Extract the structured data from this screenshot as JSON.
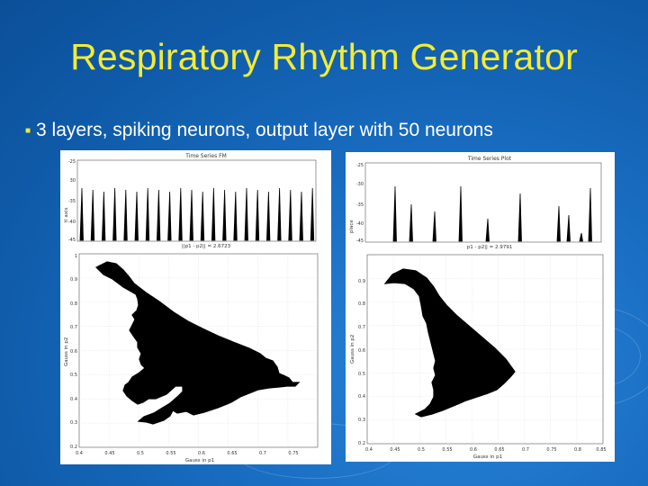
{
  "slide": {
    "title": "Respiratory Rhythm Generator",
    "bullet": "3 layers, spiking neurons, output layer with 50 neurons",
    "colors": {
      "background": "#1667b8",
      "title": "#f2ec35",
      "text": "#ffffff"
    }
  },
  "figures": {
    "left": {
      "top_title": "Time Series FM",
      "top_ylabel": "tl axis",
      "top_yticks": [
        "-25",
        "30",
        "-35",
        "-40",
        "-45"
      ],
      "norm_label": "||p1 - p2|| = 2.6723",
      "bottom_ylabel": "Gauss in p2",
      "bottom_xlabel": "Gauss in p1",
      "bottom_yticks": [
        "1",
        "0.9",
        "0.8",
        "0.7",
        "0.6",
        "0.5",
        "0.4",
        "0.3",
        "0.2"
      ],
      "bottom_xticks": [
        "0.4",
        "0.45",
        "0.5",
        "0.55",
        "0.6",
        "0.65",
        "0.7",
        "0.75"
      ]
    },
    "right": {
      "top_title": "Time Series Plot",
      "top_ylabel": "place",
      "top_yticks": [
        "-25",
        "-30",
        "-35",
        "-40",
        "-45"
      ],
      "norm_label": "p1 - p2|| = 2.9791",
      "bottom_ylabel": "Gauss in p2",
      "bottom_xlabel": "Gauss in p1",
      "bottom_yticks": [
        "0.9",
        "0.8",
        "0.7",
        "0.6",
        "0.5",
        "0.4",
        "0.3",
        "0.2"
      ],
      "bottom_xticks": [
        "0.4",
        "0.45",
        "0.5",
        "0.55",
        "0.6",
        "0.65",
        "0.7",
        "0.75",
        "0.8",
        "0.85"
      ]
    }
  }
}
